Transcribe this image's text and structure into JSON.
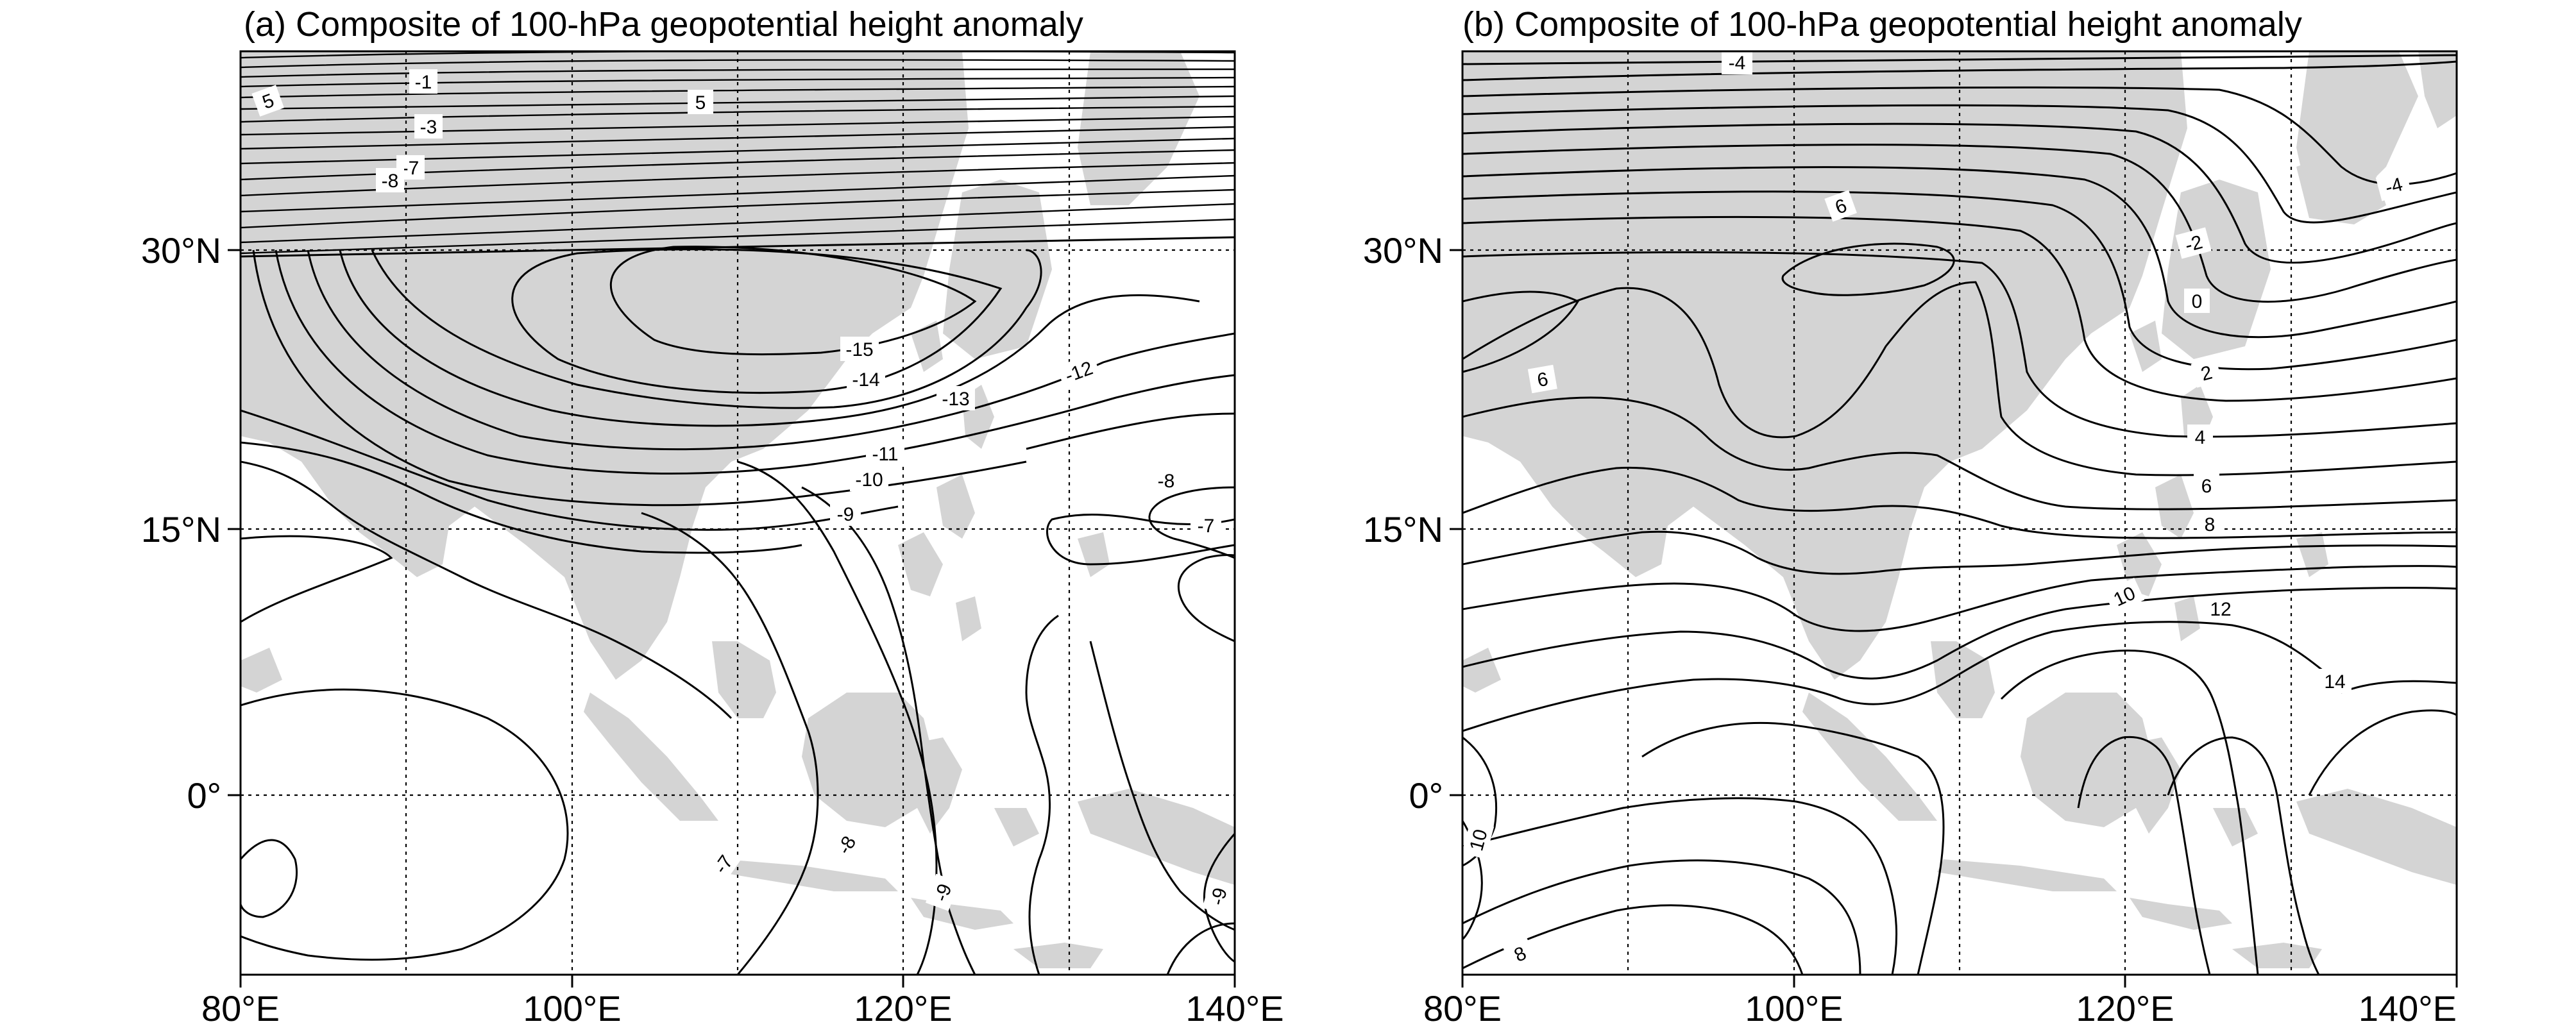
{
  "panels": [
    {
      "id": "a",
      "title": "(a)  Composite of 100-hPa geopotential height anomaly",
      "contour_labels": [
        "5",
        "-1",
        "-3",
        "-7",
        "-8",
        "5",
        "-15",
        "-14",
        "-13",
        "-12",
        "-11",
        "-10",
        "-9",
        "-8",
        "-7",
        "-7",
        "-8",
        "-9",
        "-9"
      ]
    },
    {
      "id": "b",
      "title": "(b)  Composite of 100-hPa geopotential height anomaly",
      "contour_labels": [
        "-4",
        "6",
        "-2",
        "-4",
        "0",
        "2",
        "6",
        "4",
        "6",
        "8",
        "10",
        "12",
        "14",
        "10",
        "8"
      ]
    }
  ],
  "axes": {
    "x_ticks": [
      "80°E",
      "100°E",
      "120°E",
      "140°E"
    ],
    "y_ticks": [
      "30°N",
      "15°N",
      "0°"
    ]
  },
  "colors": {
    "land": "#d4d4d4",
    "contour": "#000000",
    "background": "#ffffff"
  }
}
